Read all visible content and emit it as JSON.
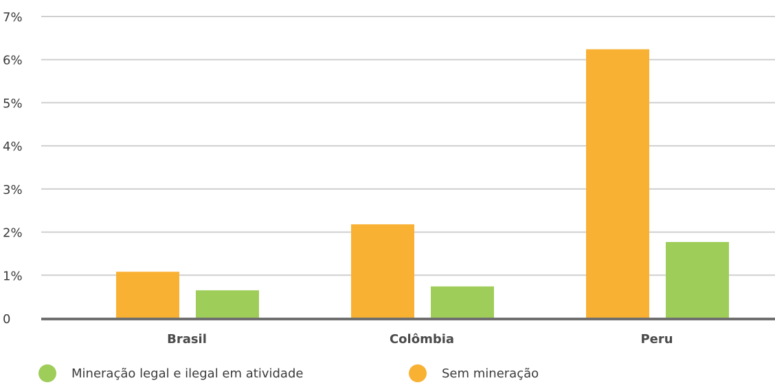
{
  "chart_data": {
    "type": "bar",
    "categories": [
      "Brasil",
      "Colômbia",
      "Peru"
    ],
    "series": [
      {
        "name": "Sem mineração",
        "color": "#f8b133",
        "values": [
          1.08,
          2.18,
          6.24
        ]
      },
      {
        "name": "Mineração legal e ilegal em atividade",
        "color": "#9fcd5a",
        "values": [
          0.65,
          0.74,
          1.77
        ]
      }
    ],
    "ylim": [
      0,
      7
    ],
    "yticks": [
      "0",
      "1%",
      "2%",
      "3%",
      "4%",
      "5%",
      "6%",
      "7%"
    ],
    "grid": true,
    "axis_color": "#6f6f6f",
    "grid_color": "#cfcfcf",
    "legend_position": "bottom-left"
  },
  "legend": {
    "items": [
      {
        "label": "Mineração legal e ilegal em atividade",
        "color": "#9fcd5a"
      },
      {
        "label": "Sem mineração",
        "color": "#f8b133"
      }
    ]
  }
}
